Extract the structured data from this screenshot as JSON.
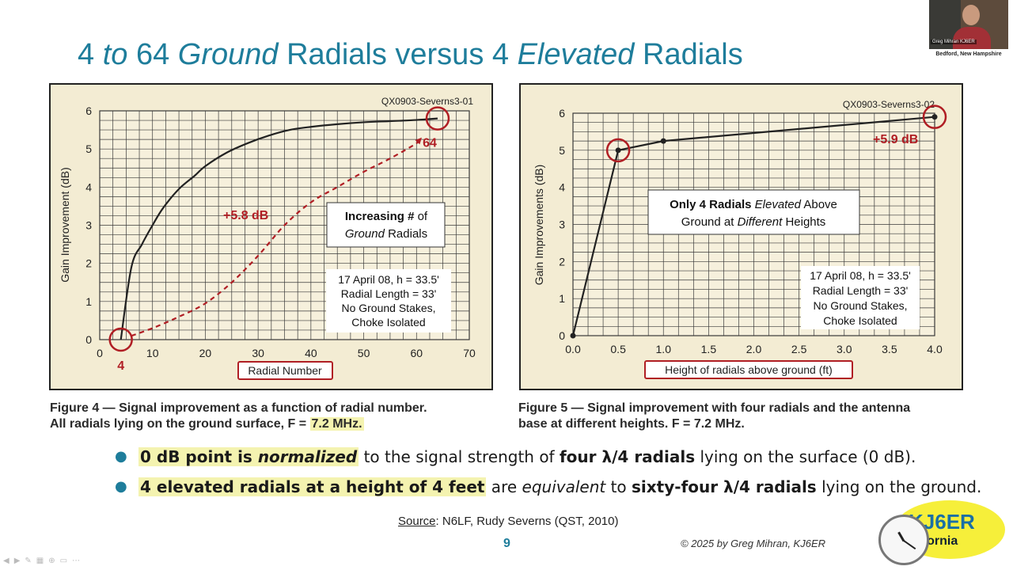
{
  "slide": {
    "title_parts": [
      "4 ",
      "to",
      " 64 ",
      "Ground",
      " Radials versus 4 ",
      "Elevated",
      " Radials"
    ],
    "page_number": "9",
    "copyright": "© 2025 by Greg Mihran, KJ6ER",
    "source_label": "Source",
    "source_text": ": N6LF, Rudy Severns (QST, 2010)"
  },
  "captions": {
    "fig4_line1": "Figure 4 — Signal improvement as a function of radial number.",
    "fig4_line2": "All radials lying on the ground surface, F = ",
    "fig4_freq": "7.2 MHz.",
    "fig5_line1": "Figure 5 — Signal improvement with four radials and the antenna",
    "fig5_line2": "base at different heights. F = 7.2 MHz."
  },
  "bullets": [
    {
      "hl": "0 dB point is ",
      "hl_em": "normalized",
      "t1": " to the signal strength of ",
      "b2": "four λ/4 radials",
      "t2": " lying on the surface (0 dB)."
    },
    {
      "hl": "4 elevated radials at a height of 4 feet",
      "t1": " are ",
      "em": "equivalent",
      "t2": " to ",
      "b2": "sixty-four λ/4 radials",
      "t3": " lying on the ground."
    }
  ],
  "logo": {
    "line1": "KJ6ER",
    "line2": "alifornia"
  },
  "webcam": {
    "name": "Greg Mihran KJ6ER",
    "location": "Bedford, New Hampshire"
  },
  "colors": {
    "title": "#1e7d9b",
    "annotation": "#b01e24",
    "highlight": "#f4f3b0",
    "chart_bg": "#f3ecd3",
    "grid": "#3a3a3a"
  },
  "chart_data": [
    {
      "type": "line",
      "id_label": "QX0903-Severns3-01",
      "xlabel": "Radial Number",
      "ylabel": "Gain Improvement (dB)",
      "xlim": [
        0,
        70
      ],
      "ylim": [
        0,
        6
      ],
      "xticks": [
        0,
        10,
        20,
        30,
        40,
        50,
        60,
        70
      ],
      "yticks": [
        0,
        1,
        2,
        3,
        4,
        5,
        6
      ],
      "grid": true,
      "series": [
        {
          "style": "solid",
          "x": [
            4,
            6,
            8,
            10,
            12,
            15,
            18,
            20,
            24,
            28,
            32,
            36,
            40,
            45,
            50,
            55,
            60,
            64
          ],
          "y": [
            0,
            1.9,
            2.5,
            3.0,
            3.45,
            3.95,
            4.3,
            4.55,
            4.9,
            5.15,
            5.35,
            5.5,
            5.58,
            5.65,
            5.7,
            5.73,
            5.76,
            5.8
          ]
        },
        {
          "style": "dashed",
          "x": [
            6,
            10,
            15,
            20,
            25,
            30,
            35,
            40,
            45,
            50,
            55,
            60,
            61
          ],
          "y": [
            0.1,
            0.3,
            0.6,
            0.95,
            1.5,
            2.2,
            3.0,
            3.6,
            4.0,
            4.4,
            4.75,
            5.15,
            5.3
          ]
        }
      ],
      "markers": [
        {
          "x": 4,
          "y": 0,
          "label": "4"
        },
        {
          "x": 64,
          "y": 5.8,
          "label": "64"
        }
      ],
      "annotations": [
        {
          "text": "+5.8 dB"
        },
        {
          "lines": [
            "Increasing # of",
            "Ground Radials"
          ],
          "bold": "Increasing #",
          "italic": "Ground"
        },
        {
          "lines": [
            "17 April 08, h = 33.5'",
            "Radial Length = 33'",
            "No Ground Stakes,",
            "Choke Isolated"
          ]
        }
      ]
    },
    {
      "type": "line",
      "id_label": "QX0903-Severns3-02",
      "xlabel": "Height of radials above ground (ft)",
      "ylabel": "Gain Improvements (dB)",
      "xlim": [
        0,
        4
      ],
      "ylim": [
        0,
        6
      ],
      "xticks": [
        "0.0",
        "0.5",
        "1.0",
        "1.5",
        "2.0",
        "2.5",
        "3.0",
        "3.5",
        "4.0"
      ],
      "yticks": [
        0,
        1,
        2,
        3,
        4,
        5,
        6
      ],
      "grid": true,
      "series": [
        {
          "style": "solid",
          "x": [
            0,
            0.5,
            1.0,
            4.0
          ],
          "y": [
            0,
            5.0,
            5.25,
            5.9
          ]
        }
      ],
      "markers": [
        {
          "x": 0.5,
          "y": 5.0
        },
        {
          "x": 4.0,
          "y": 5.9
        }
      ],
      "annotations": [
        {
          "text": "+5.9 dB"
        },
        {
          "lines": [
            "Only 4 Radials Elevated Above",
            "Ground at Different Heights"
          ]
        },
        {
          "lines": [
            "17 April 08, h = 33.5'",
            "Radial Length = 33'",
            "No Ground Stakes,",
            "Choke Isolated"
          ]
        }
      ]
    }
  ]
}
